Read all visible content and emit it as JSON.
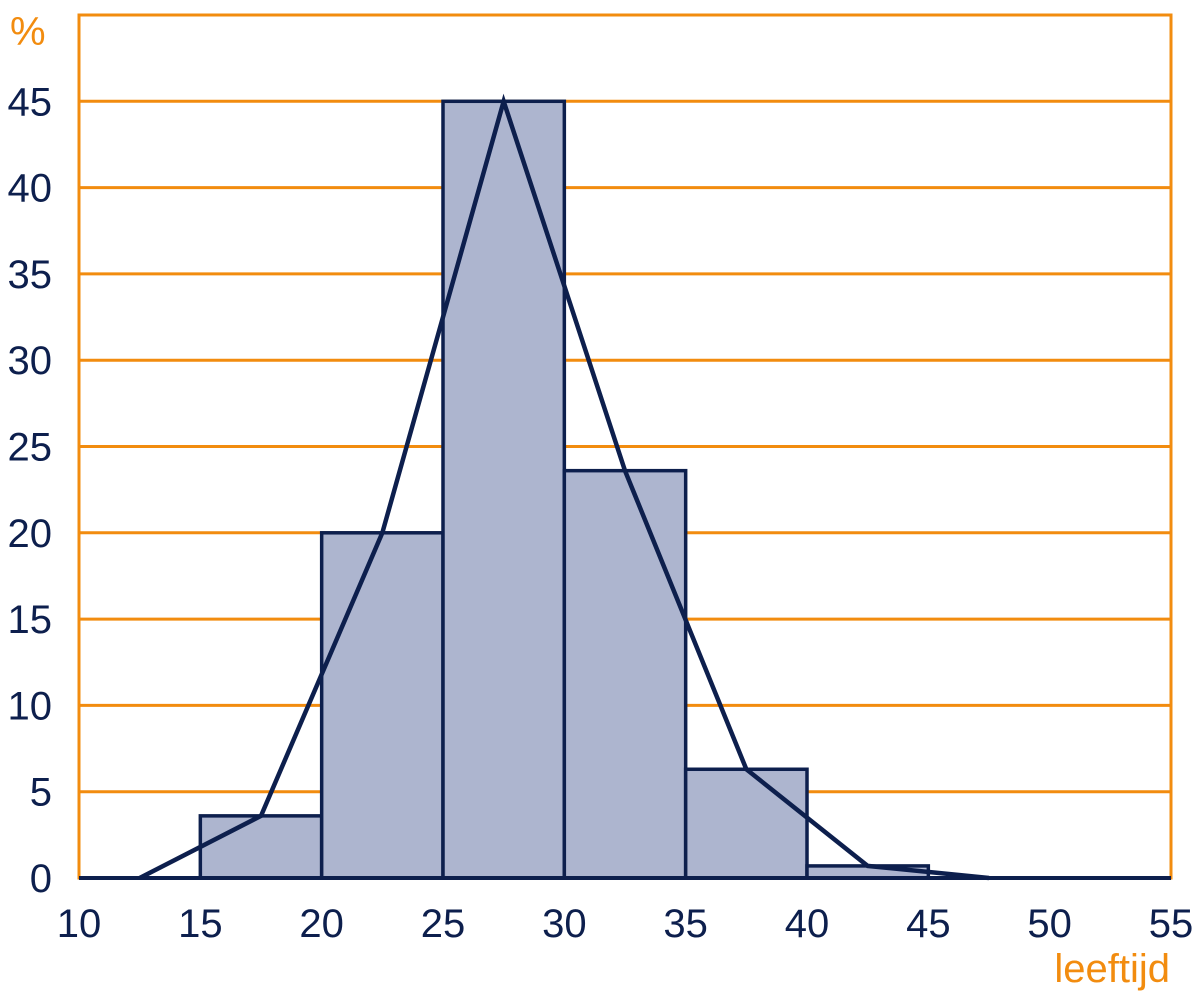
{
  "chart_data": {
    "type": "bar",
    "title": "",
    "xlabel": "leeftijd",
    "ylabel": "%",
    "xlim": [
      10,
      55
    ],
    "ylim": [
      0,
      50
    ],
    "x_ticks": [
      10,
      15,
      20,
      25,
      30,
      35,
      40,
      45,
      50,
      55
    ],
    "y_ticks": [
      0,
      5,
      10,
      15,
      20,
      25,
      30,
      35,
      40,
      45
    ],
    "grid": true,
    "bins": [
      {
        "from": 15,
        "to": 20,
        "value": 3.6
      },
      {
        "from": 20,
        "to": 25,
        "value": 20
      },
      {
        "from": 25,
        "to": 30,
        "value": 45
      },
      {
        "from": 30,
        "to": 35,
        "value": 23.6
      },
      {
        "from": 35,
        "to": 40,
        "value": 6.3
      },
      {
        "from": 40,
        "to": 45,
        "value": 0.7
      }
    ],
    "frequency_polygon": {
      "x": [
        12.5,
        17.5,
        22.5,
        27.5,
        32.5,
        37.5,
        42.5,
        47.5
      ],
      "y": [
        0,
        3.6,
        20,
        45,
        23.6,
        6.3,
        0.7,
        0
      ]
    },
    "colors": {
      "grid": "#f28c0f",
      "bar_fill": "#adb5cf",
      "bar_stroke": "#0d1f4d",
      "line": "#0d1f4d",
      "tick_text": "#0d1f4d",
      "unit_text": "#f28c0f"
    }
  }
}
